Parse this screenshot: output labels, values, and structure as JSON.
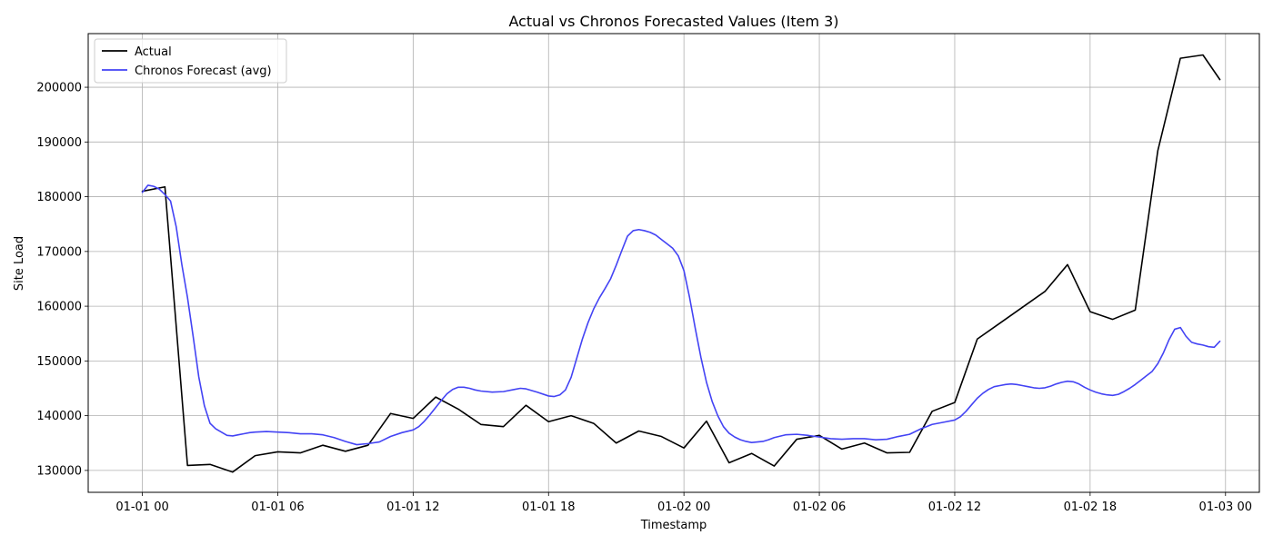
{
  "chart_data": {
    "type": "line",
    "title": "Actual vs Chronos Forecasted Values (Item 3)",
    "xlabel": "Timestamp",
    "ylabel": "Site Load",
    "x_unit": "hours",
    "xlim": [
      -2.4,
      49.5
    ],
    "ylim": [
      126000,
      209800
    ],
    "grid": true,
    "legend_position": "upper-left",
    "x_ticks": [
      {
        "value": 0,
        "label": "01-01 00"
      },
      {
        "value": 6,
        "label": "01-01 06"
      },
      {
        "value": 12,
        "label": "01-01 12"
      },
      {
        "value": 18,
        "label": "01-01 18"
      },
      {
        "value": 24,
        "label": "01-02 00"
      },
      {
        "value": 30,
        "label": "01-02 06"
      },
      {
        "value": 36,
        "label": "01-02 12"
      },
      {
        "value": 42,
        "label": "01-02 18"
      },
      {
        "value": 48,
        "label": "01-03 00"
      }
    ],
    "y_ticks": [
      {
        "value": 130000,
        "label": "130000"
      },
      {
        "value": 140000,
        "label": "140000"
      },
      {
        "value": 150000,
        "label": "150000"
      },
      {
        "value": 160000,
        "label": "160000"
      },
      {
        "value": 170000,
        "label": "170000"
      },
      {
        "value": 180000,
        "label": "180000"
      },
      {
        "value": 190000,
        "label": "190000"
      },
      {
        "value": 200000,
        "label": "200000"
      }
    ],
    "series": [
      {
        "name": "Actual",
        "color": "#000000",
        "x": [
          0,
          1,
          2,
          3,
          4,
          5,
          6,
          7,
          8,
          9,
          10,
          11,
          12,
          13,
          14,
          15,
          16,
          17,
          18,
          19,
          20,
          21,
          22,
          23,
          24,
          25,
          26,
          27,
          28,
          29,
          30,
          31,
          32,
          33,
          34,
          35,
          36,
          37,
          38,
          39,
          40,
          41,
          42,
          43,
          44,
          45,
          46,
          47,
          47.75
        ],
        "y": [
          181000,
          181800,
          130900,
          131100,
          129700,
          132700,
          133400,
          133200,
          134600,
          133500,
          134600,
          140400,
          139500,
          143400,
          141200,
          138400,
          138000,
          141900,
          138900,
          140000,
          138600,
          135000,
          137200,
          136200,
          134100,
          139000,
          131400,
          133100,
          130800,
          135700,
          136400,
          133900,
          135000,
          133200,
          133300,
          140800,
          142400,
          154000,
          156900,
          159800,
          162700,
          167600,
          159000,
          157600,
          159300,
          188400,
          205300,
          205900,
          201400
        ]
      },
      {
        "name": "Chronos Forecast (avg)",
        "color": "#4343f4",
        "x": [
          0,
          0.25,
          0.5,
          0.75,
          1,
          1.25,
          1.5,
          1.75,
          2,
          2.25,
          2.5,
          2.75,
          3,
          3.25,
          3.5,
          3.75,
          4,
          4.25,
          4.5,
          4.75,
          5,
          5.5,
          6,
          6.5,
          7,
          7.5,
          8,
          8.5,
          9,
          9.5,
          10,
          10.5,
          11,
          11.5,
          12,
          12.25,
          12.5,
          12.75,
          13,
          13.25,
          13.5,
          13.75,
          14,
          14.25,
          14.5,
          14.75,
          15,
          15.5,
          16,
          16.5,
          16.75,
          17,
          17.5,
          18,
          18.25,
          18.5,
          18.75,
          19,
          19.25,
          19.5,
          19.75,
          20,
          20.25,
          20.5,
          20.75,
          21,
          21.25,
          21.5,
          21.75,
          22,
          22.25,
          22.5,
          22.75,
          23,
          23.25,
          23.5,
          23.75,
          24,
          24.25,
          24.5,
          24.75,
          25,
          25.25,
          25.5,
          25.75,
          26,
          26.25,
          26.5,
          26.75,
          27,
          27.25,
          27.5,
          27.75,
          28,
          28.5,
          29,
          29.5,
          30,
          30.5,
          31,
          31.5,
          32,
          32.5,
          33,
          33.5,
          34,
          34.5,
          35,
          35.5,
          36,
          36.25,
          36.5,
          36.75,
          37,
          37.25,
          37.5,
          37.75,
          38,
          38.25,
          38.5,
          38.75,
          39,
          39.25,
          39.5,
          39.75,
          40,
          40.25,
          40.5,
          40.75,
          41,
          41.25,
          41.5,
          41.75,
          42,
          42.25,
          42.5,
          42.75,
          43,
          43.25,
          43.5,
          43.75,
          44,
          44.25,
          44.5,
          44.75,
          45,
          45.25,
          45.5,
          45.75,
          46,
          46.25,
          46.5,
          46.75,
          47,
          47.25,
          47.5,
          47.75
        ],
        "y": [
          180800,
          182100,
          181900,
          181400,
          180400,
          179200,
          174500,
          167600,
          161600,
          154500,
          147100,
          141800,
          138600,
          137600,
          137000,
          136400,
          136300,
          136500,
          136700,
          136900,
          137000,
          137100,
          137000,
          136900,
          136700,
          136700,
          136500,
          136000,
          135300,
          134700,
          134900,
          135200,
          136200,
          136900,
          137400,
          138000,
          139000,
          140200,
          141500,
          142800,
          144000,
          144800,
          145200,
          145200,
          145000,
          144700,
          144500,
          144300,
          144400,
          144800,
          145000,
          144900,
          144300,
          143600,
          143500,
          143800,
          144700,
          147000,
          150500,
          154000,
          157000,
          159500,
          161500,
          163200,
          165000,
          167500,
          170200,
          172800,
          173800,
          174000,
          173800,
          173500,
          173000,
          172200,
          171400,
          170600,
          169200,
          166500,
          161600,
          156000,
          150700,
          146100,
          142600,
          140000,
          138000,
          136800,
          136100,
          135600,
          135300,
          135100,
          135200,
          135300,
          135600,
          136000,
          136500,
          136600,
          136400,
          136100,
          135800,
          135700,
          135800,
          135800,
          135600,
          135700,
          136200,
          136600,
          137600,
          138400,
          138800,
          139200,
          139800,
          140800,
          142000,
          143200,
          144100,
          144800,
          145300,
          145500,
          145700,
          145800,
          145700,
          145500,
          145300,
          145100,
          145000,
          145100,
          145400,
          145800,
          146100,
          146300,
          146200,
          145800,
          145200,
          144700,
          144300,
          144000,
          143800,
          143700,
          143900,
          144400,
          145000,
          145700,
          146500,
          147300,
          148100,
          149500,
          151500,
          153900,
          155800,
          156100,
          154500,
          153400,
          153100,
          152900,
          152600,
          152500,
          153600
        ]
      }
    ]
  }
}
